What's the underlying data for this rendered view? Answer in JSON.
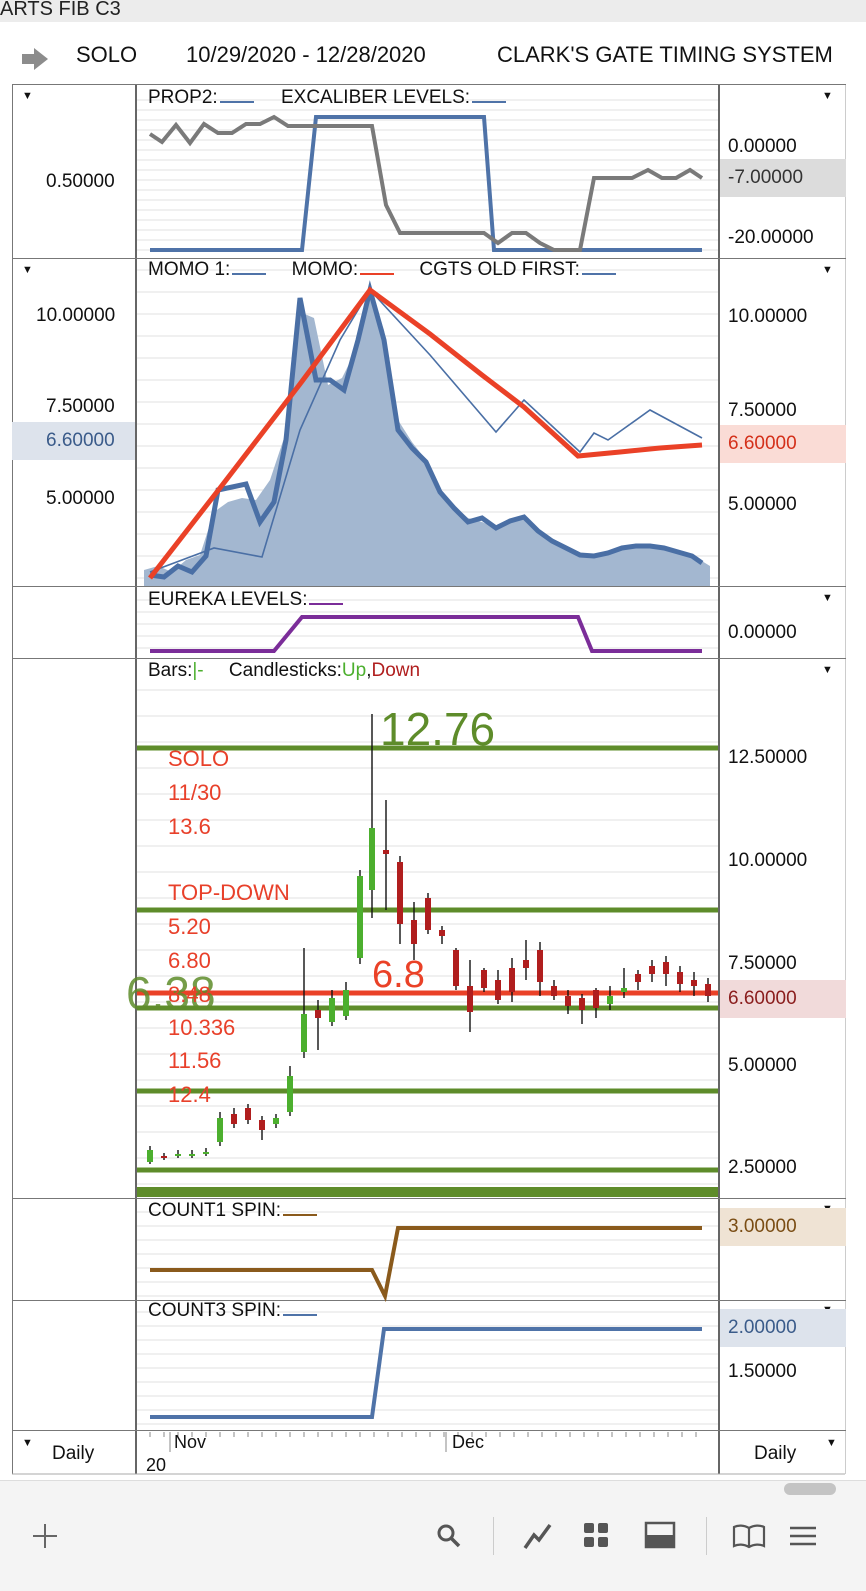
{
  "window_title": "ARTS FIB C3",
  "header": {
    "symbol": "SOLO",
    "date_range": "10/29/2020 - 12/28/2020",
    "system_name": "CLARK'S GATE TIMING SYSTEM"
  },
  "panel1": {
    "legend": {
      "a": "PROP2:",
      "b": "EXCALIBER LEVELS:"
    },
    "left_axis": [
      "0.50000"
    ],
    "right_axis": [
      "0.00000",
      "-20.00000"
    ],
    "badge": "-7.00000",
    "colors": {
      "prop2": "#7a7a7a",
      "excaliber": "#4f73a8"
    }
  },
  "panel2": {
    "legend": {
      "a": "MOMO 1:",
      "b": "MOMO:",
      "c": "CGTS OLD FIRST:"
    },
    "left_axis": [
      "10.00000",
      "7.50000",
      "5.00000"
    ],
    "left_badge": "6.60000",
    "right_axis": [
      "10.00000",
      "7.50000",
      "5.00000"
    ],
    "right_badge": "6.60000",
    "colors": {
      "momo1": "#4a6fa5",
      "momo": "#ea4127",
      "cgts": "#4a6fa5",
      "area": "#a3b7d0"
    }
  },
  "panel3": {
    "legend": {
      "a": "EUREKA LEVELS:"
    },
    "right_axis": [
      "0.00000"
    ],
    "colors": {
      "eureka": "#7b2d99"
    }
  },
  "panel4": {
    "legend": {
      "bars": "Bars:",
      "bars_sym": "|-",
      "candles": "Candlesticks:",
      "up": "Up",
      "comma": ",",
      "down": "Down"
    },
    "big_label_top": "12.76",
    "big_label_mid": "6.8",
    "big_label_left": "6.38",
    "annotations": [
      "SOLO",
      "11/30",
      "13.6",
      "TOP-DOWN",
      "5.20",
      "6.80",
      "8.48",
      "10.336",
      "11.56",
      "12.4"
    ],
    "right_axis": [
      "12.50000",
      "10.00000",
      "7.50000",
      "5.00000",
      "2.50000"
    ],
    "right_badge": "6.60000",
    "colors": {
      "up": "#4caf2e",
      "down": "#b01e1e",
      "level": "#5e8c2a",
      "red_line": "#ea4127"
    }
  },
  "panel5": {
    "legend": {
      "a": "COUNT1 SPIN:"
    },
    "badge": "3.00000",
    "colors": {
      "line": "#8a5a1c"
    }
  },
  "panel6": {
    "legend": {
      "a": "COUNT3 SPIN:"
    },
    "right_axis": [
      "1.50000"
    ],
    "badge": "2.00000",
    "colors": {
      "line": "#4f73a8"
    }
  },
  "xaxis": {
    "months": [
      "Nov",
      "Dec"
    ],
    "year": "20",
    "left_period": "Daily",
    "right_period": "Daily"
  },
  "toolbar": {
    "icons": [
      "add-icon",
      "search-icon",
      "chart-line-icon",
      "grid-icon",
      "layout-icon",
      "book-icon",
      "menu-icon"
    ]
  }
}
